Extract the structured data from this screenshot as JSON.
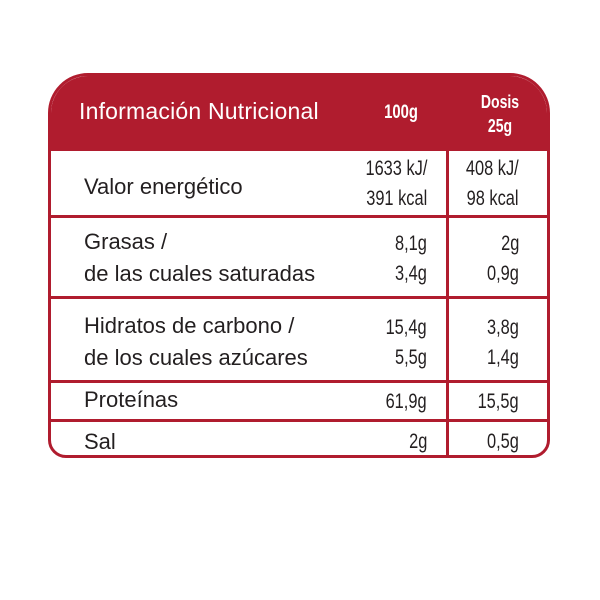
{
  "header": {
    "title": "Información Nutricional",
    "col_100g": "100g",
    "col_dose_line1": "Dosis",
    "col_dose_line2": "25g"
  },
  "rows": [
    {
      "labels": [
        "Valor energético"
      ],
      "per100": [
        "1633 kJ/",
        "391 kcal"
      ],
      "perDose": [
        "408 kJ/",
        "98 kcal"
      ]
    },
    {
      "labels": [
        "Grasas /",
        "de las cuales saturadas"
      ],
      "per100": [
        "8,1g",
        "3,4g"
      ],
      "perDose": [
        "2g",
        "0,9g"
      ]
    },
    {
      "labels": [
        "Hidratos de carbono /",
        "de los cuales azúcares"
      ],
      "per100": [
        "15,4g",
        "5,5g"
      ],
      "perDose": [
        "3,8g",
        "1,4g"
      ]
    },
    {
      "labels": [
        "Proteínas"
      ],
      "per100": [
        "61,9g"
      ],
      "perDose": [
        "15,5g"
      ]
    },
    {
      "labels": [
        "Sal"
      ],
      "per100": [
        "2g"
      ],
      "perDose": [
        "0,5g"
      ]
    }
  ],
  "colors": {
    "accent": "#b01c2e",
    "text": "#231f20",
    "header_text": "#ffffff"
  }
}
